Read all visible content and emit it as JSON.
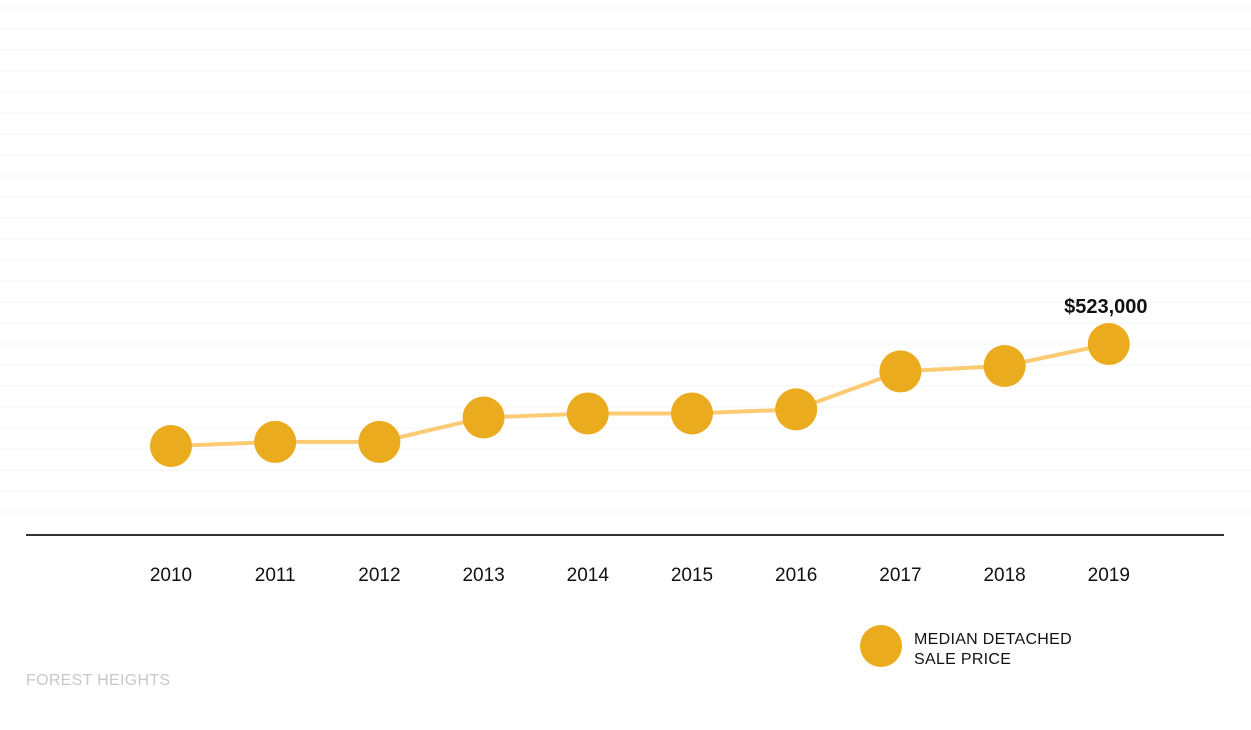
{
  "chart_data": {
    "type": "line",
    "categories": [
      "2010",
      "2011",
      "2012",
      "2013",
      "2014",
      "2015",
      "2016",
      "2017",
      "2018",
      "2019"
    ],
    "series": [
      {
        "name": "MEDIAN DETACHED SALE PRICE",
        "values": [
          287000,
          290000,
          290000,
          308000,
          311000,
          311000,
          314000,
          342000,
          346000,
          523000
        ]
      }
    ],
    "annotations": [
      {
        "category": "2019",
        "text": "$523,000"
      }
    ],
    "legend": {
      "position": "bottom-right",
      "lines": [
        "MEDIAN DETACHED",
        "SALE PRICE"
      ]
    },
    "grid": true,
    "title": "",
    "xlabel": "",
    "ylabel": "",
    "colors": {
      "marker": "#EBAB1F",
      "line": "#FBCB74",
      "axis": "#333333",
      "grid": "#f4f4f4"
    }
  },
  "footer": {
    "label": "FOREST HEIGHTS"
  }
}
